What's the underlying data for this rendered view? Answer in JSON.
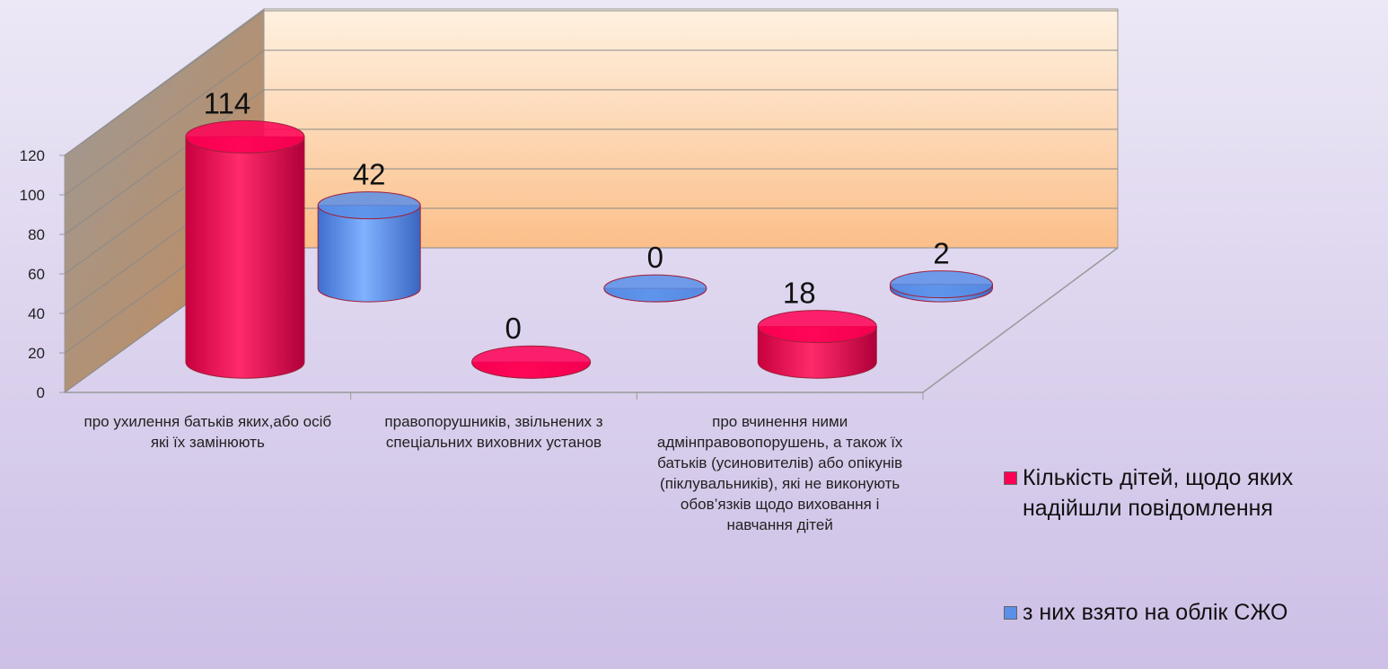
{
  "chart_data": {
    "type": "bar3d",
    "categories": [
      "про ухилення батьків яких,або осіб які їх замінюють",
      "правопорушників, звільнених з спеціальних виховних установ",
      "про вчинення ними адмінправовопорушень, а також їх батьків (усиновителів) або опікунів (піклувальників), які не виконують обов’язків щодо виховання і навчання дітей"
    ],
    "series": [
      {
        "name": "Кількість дітей, щодо яких надійшли повідомлення",
        "color": "#ff0055",
        "values": [
          114,
          0,
          18
        ]
      },
      {
        "name": "з них взято на облік СЖО",
        "color": "#5b8fe8",
        "values": [
          42,
          0,
          2
        ]
      }
    ],
    "ylim": [
      0,
      120
    ],
    "yticks": [
      0,
      20,
      40,
      60,
      80,
      100,
      120
    ],
    "grid": true,
    "legend": "right"
  }
}
